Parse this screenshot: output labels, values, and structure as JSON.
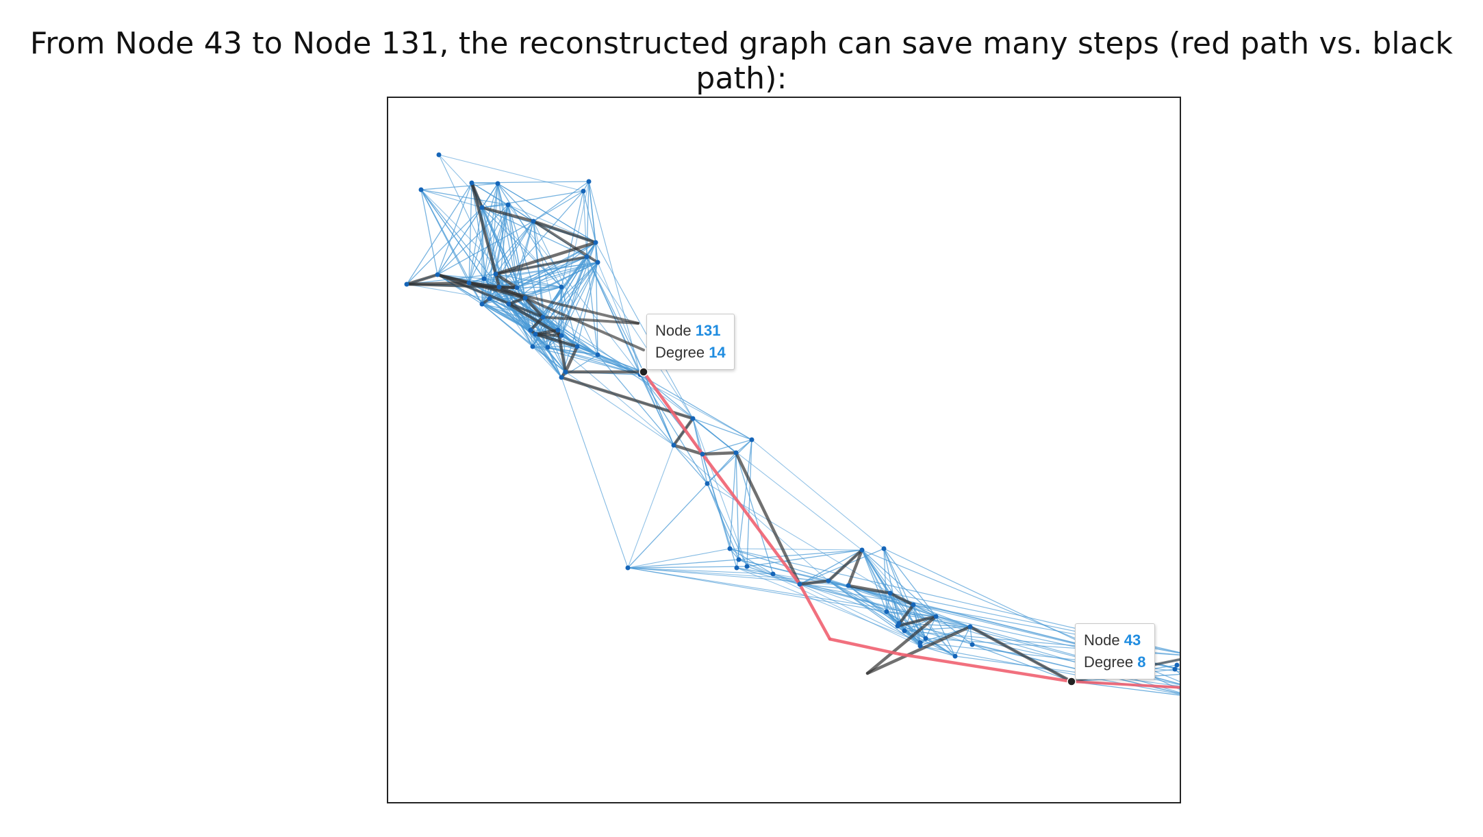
{
  "title": "From Node 43 to Node 131, the reconstructed graph can save many steps (red path vs. black path):",
  "colors": {
    "edge": "#4a9ad6",
    "node": "#1565b8",
    "black_path": "#333333",
    "red_path": "#f06070",
    "highlight": "#1f8ce0"
  },
  "tooltips": {
    "node131": {
      "node_label": "Node",
      "node_id": "131",
      "degree_label": "Degree",
      "degree_value": "14"
    },
    "node43": {
      "node_label": "Node",
      "node_id": "43",
      "degree_label": "Degree",
      "degree_value": "8"
    }
  }
}
